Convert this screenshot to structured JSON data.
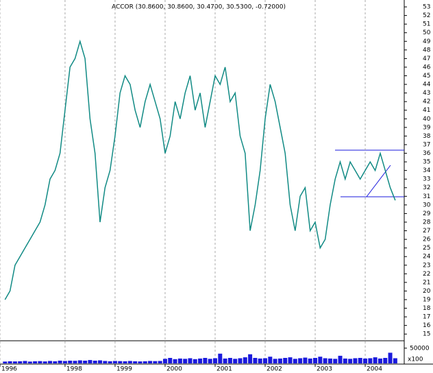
{
  "chart_data": {
    "type": "line",
    "title": "ACCOR (30.8600, 30.8600, 30.4700, 30.5300, -0.72000)",
    "color": "#108a84",
    "x": [
      1996.8,
      1996.9,
      1997.0,
      1997.1,
      1997.2,
      1997.3,
      1997.4,
      1997.5,
      1997.6,
      1997.7,
      1997.8,
      1997.9,
      1998.0,
      1998.1,
      1998.2,
      1998.3,
      1998.4,
      1998.5,
      1998.6,
      1998.7,
      1998.8,
      1998.9,
      1999.0,
      1999.1,
      1999.2,
      1999.3,
      1999.4,
      1999.5,
      1999.6,
      1999.7,
      1999.8,
      1999.9,
      2000.0,
      2000.1,
      2000.2,
      2000.3,
      2000.4,
      2000.5,
      2000.6,
      2000.7,
      2000.8,
      2000.9,
      2001.0,
      2001.1,
      2001.2,
      2001.3,
      2001.4,
      2001.5,
      2001.6,
      2001.7,
      2001.8,
      2001.9,
      2002.0,
      2002.1,
      2002.2,
      2002.3,
      2002.4,
      2002.5,
      2002.6,
      2002.7,
      2002.8,
      2002.9,
      2003.0,
      2003.1,
      2003.2,
      2003.3,
      2003.4,
      2003.5,
      2003.6,
      2003.7,
      2003.8,
      2003.9,
      2004.0,
      2004.1,
      2004.2,
      2004.3,
      2004.4,
      2004.5,
      2004.6
    ],
    "values": [
      19,
      20,
      23,
      24,
      25,
      26,
      27,
      28,
      30,
      33,
      34,
      36,
      41,
      46,
      47,
      49,
      47,
      40,
      36,
      28,
      32,
      34,
      38,
      43,
      45,
      44,
      41,
      39,
      42,
      44,
      42,
      40,
      36,
      38,
      42,
      40,
      43,
      45,
      41,
      43,
      39,
      42,
      45,
      44,
      46,
      42,
      43,
      38,
      36,
      27,
      30,
      34,
      40,
      44,
      42,
      39,
      36,
      30,
      27,
      31,
      32,
      27,
      28,
      25,
      26,
      30,
      33,
      35,
      33,
      35,
      34,
      33,
      34,
      35,
      34,
      36,
      34,
      32,
      30.53
    ],
    "xlim": [
      1996.7,
      2004.78
    ],
    "xticks": [
      {
        "value": 1996.7,
        "label": "1996"
      },
      1998,
      1999,
      2000,
      2001,
      2002,
      2003,
      2004
    ],
    "ylim": [
      14.3,
      53.8
    ],
    "yticks": [
      15,
      16,
      17,
      18,
      19,
      20,
      21,
      22,
      23,
      24,
      25,
      26,
      27,
      28,
      29,
      30,
      31,
      32,
      33,
      34,
      35,
      36,
      37,
      38,
      39,
      40,
      41,
      42,
      43,
      44,
      45,
      46,
      47,
      48,
      49,
      50,
      51,
      52,
      53
    ],
    "grid": true,
    "volume": {
      "color": "#1a1adc",
      "values": [
        6000,
        7000,
        6500,
        7000,
        8000,
        6000,
        7000,
        7500,
        6500,
        8000,
        7000,
        9000,
        8000,
        9000,
        8500,
        10000,
        9000,
        11000,
        9000,
        10000,
        8000,
        7000,
        8000,
        7500,
        7000,
        8000,
        7000,
        6500,
        7000,
        8000,
        7500,
        8000,
        15000,
        18000,
        14000,
        16000,
        15000,
        17000,
        14000,
        16000,
        18000,
        15000,
        17000,
        32000,
        16000,
        18000,
        15000,
        17000,
        20000,
        30000,
        18000,
        16000,
        17000,
        22000,
        15000,
        16000,
        18000,
        20000,
        15000,
        17000,
        19000,
        16000,
        18000,
        22000,
        17000,
        16000,
        15000,
        25000,
        16000,
        15000,
        17000,
        18000,
        16000,
        17000,
        20000,
        16000,
        18000,
        35000,
        17000
      ],
      "ylim": [
        0,
        72000
      ],
      "yticks": [
        50000
      ],
      "unit_label": "x100"
    }
  }
}
